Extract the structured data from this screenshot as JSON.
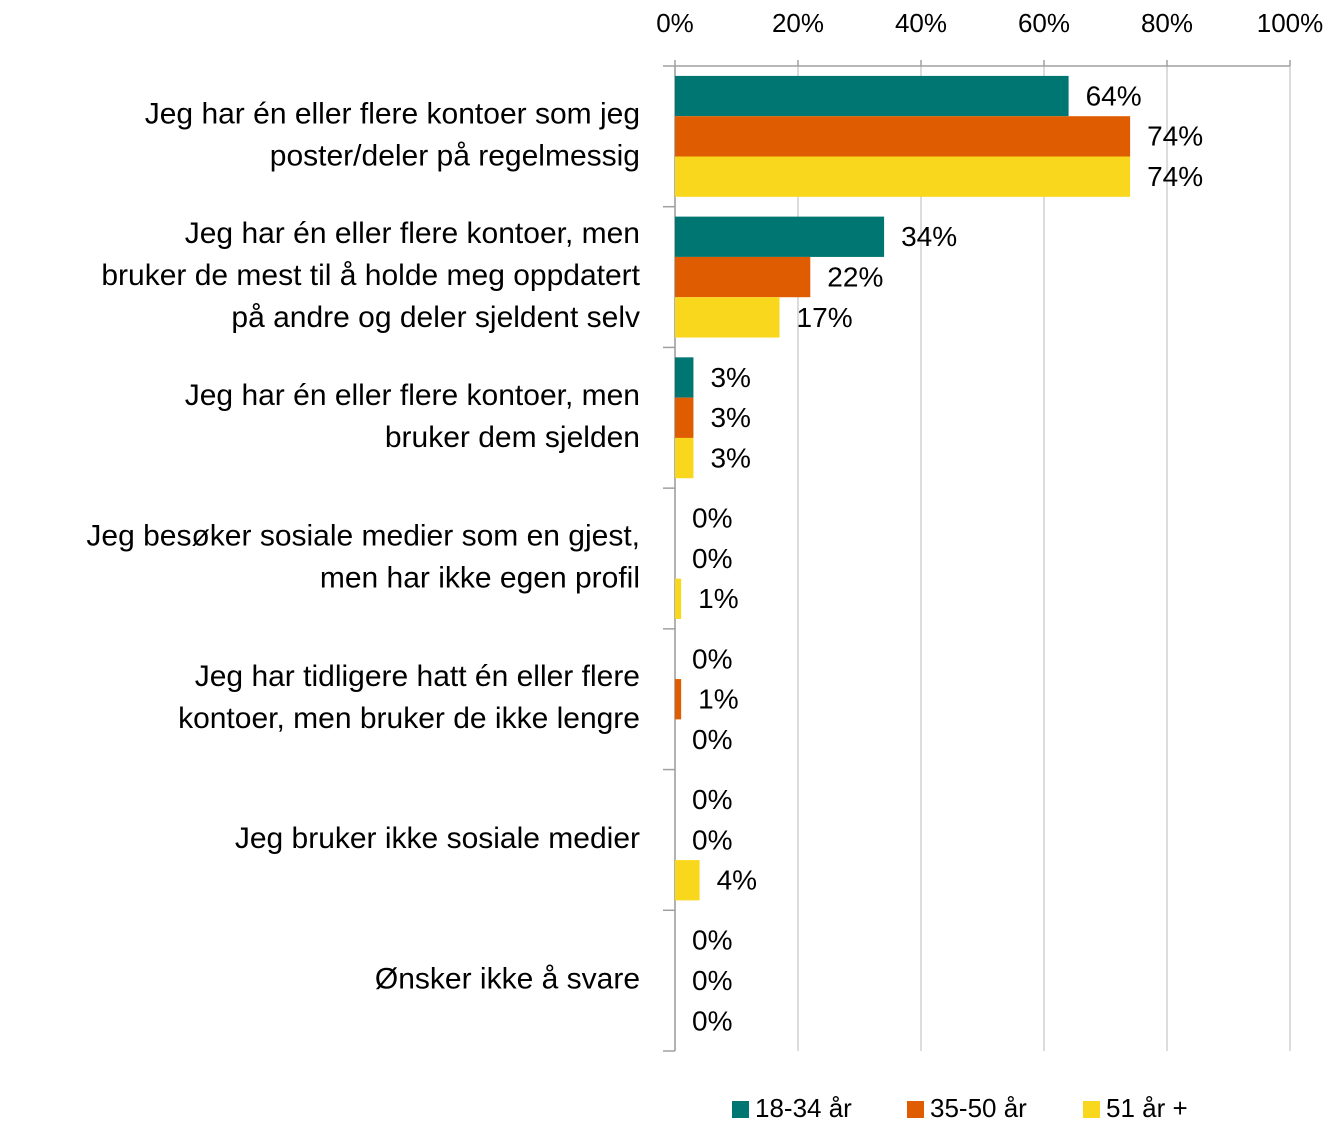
{
  "chart_data": {
    "type": "bar",
    "orientation": "horizontal",
    "categories": [
      [
        "Jeg har én eller flere kontoer som jeg",
        "poster/deler på regelmessig"
      ],
      [
        "Jeg har én eller flere kontoer, men",
        "bruker de mest til å holde meg oppdatert",
        "på andre og deler sjeldent selv"
      ],
      [
        "Jeg har én eller flere kontoer, men",
        "bruker dem sjelden"
      ],
      [
        "Jeg besøker sosiale medier som en gjest,",
        "men har ikke egen profil"
      ],
      [
        "Jeg har tidligere hatt én eller flere",
        "kontoer, men bruker de ikke lengre"
      ],
      [
        "Jeg bruker ikke sosiale medier"
      ],
      [
        "Ønsker ikke å svare"
      ]
    ],
    "series": [
      {
        "name": "18-34 år",
        "color": "#007672",
        "values": [
          64,
          34,
          3,
          0,
          0,
          0,
          0
        ],
        "value_labels": [
          "64%",
          "34%",
          "3%",
          "0%",
          "0%",
          "0%",
          "0%"
        ]
      },
      {
        "name": "35-50 år",
        "color": "#e05c00",
        "values": [
          74,
          22,
          3,
          0,
          1,
          0,
          0
        ],
        "value_labels": [
          "74%",
          "22%",
          "3%",
          "0%",
          "1%",
          "0%",
          "0%"
        ]
      },
      {
        "name": "51 år +",
        "color": "#f9d71c",
        "values": [
          74,
          17,
          3,
          1,
          0,
          4,
          0
        ],
        "value_labels": [
          "74%",
          "17%",
          "3%",
          "1%",
          "0%",
          "4%",
          "0%"
        ]
      }
    ],
    "xlim": [
      0,
      100
    ],
    "xticks": [
      {
        "value": 0,
        "label": "0%"
      },
      {
        "value": 20,
        "label": "20%"
      },
      {
        "value": 40,
        "label": "40%"
      },
      {
        "value": 60,
        "label": "60%"
      },
      {
        "value": 80,
        "label": "80%"
      },
      {
        "value": 100,
        "label": "100%"
      }
    ],
    "grid": true,
    "legend": "bottom"
  }
}
